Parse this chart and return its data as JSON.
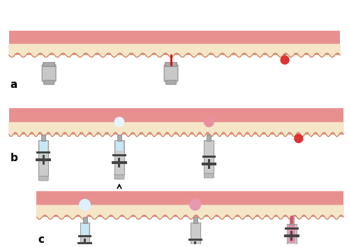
{
  "bg_color": "#ffffff",
  "skin_top_color": "#f5e6c8",
  "skin_bottom_color": "#e89090",
  "skin_border_color": "#c87050",
  "laser_color": "#dd0000",
  "blood_color": "#cc2222",
  "blood_drop_color": "#dd3333",
  "water_color": "#c8e8f8",
  "injected_water_color": "#e8c8d8",
  "device_body_color": "#c8c8c8",
  "device_dark_color": "#555555",
  "piston_color": "#888888",
  "arrow_color": "#111111",
  "label_a": "a",
  "label_b": "b",
  "label_c": "c"
}
